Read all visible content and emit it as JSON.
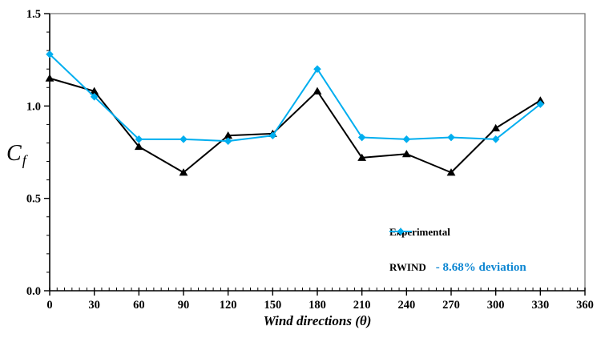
{
  "chart_data": {
    "type": "line",
    "title": "",
    "xlabel": "Wind directions (θ)",
    "ylabel_main": "C",
    "ylabel_sub": "f",
    "x": [
      0,
      30,
      60,
      90,
      120,
      150,
      180,
      210,
      240,
      270,
      300,
      330
    ],
    "series": [
      {
        "name": "Experimental",
        "marker": "triangle",
        "color": "#000000",
        "values": [
          1.15,
          1.08,
          0.78,
          0.64,
          0.84,
          0.85,
          1.08,
          0.72,
          0.74,
          0.64,
          0.88,
          1.03
        ]
      },
      {
        "name": "RWIND",
        "marker": "diamond",
        "color": "#00AEEF",
        "values": [
          1.28,
          1.05,
          0.82,
          0.82,
          0.81,
          0.84,
          1.2,
          0.83,
          0.82,
          0.83,
          0.82,
          1.01
        ]
      }
    ],
    "xlim": [
      0,
      360
    ],
    "ylim": [
      0,
      1.5
    ],
    "xticks": [
      0,
      30,
      60,
      90,
      120,
      150,
      180,
      210,
      240,
      270,
      300,
      330,
      360
    ],
    "xtick_labels": [
      "0",
      "30",
      "60",
      "90",
      "120",
      "150",
      "180",
      "210",
      "240",
      "270",
      "300",
      "330",
      "360"
    ],
    "yticks": [
      0,
      0.5,
      1,
      1.5
    ],
    "ytick_labels": [
      "0.0",
      "0.5",
      "1.0",
      "1.5"
    ],
    "x_minor_step": 5,
    "y_minor_step": 0.1,
    "grid": false,
    "legend_position": "inside-right-lower",
    "axis_color": "#000000",
    "border_color": "#757575"
  },
  "legend": {
    "entries": [
      {
        "label": "Experimental",
        "annotation": ""
      },
      {
        "label": "RWIND",
        "annotation": "- 8.68% deviation"
      }
    ],
    "annotation_color": "#0C86D2"
  }
}
